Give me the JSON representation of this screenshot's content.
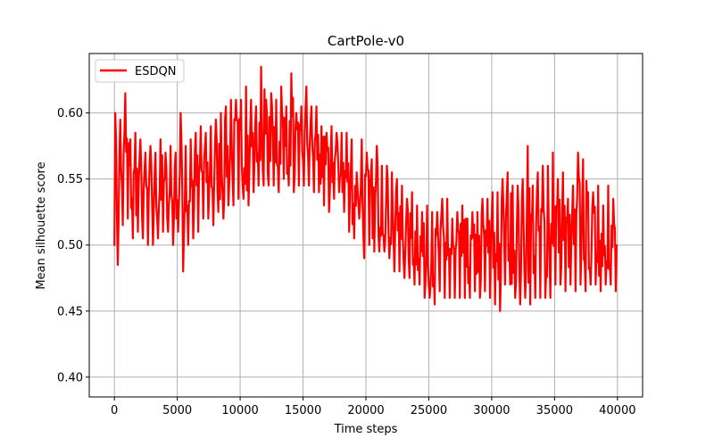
{
  "chart_data": {
    "type": "line",
    "title": "CartPole-v0",
    "xlabel": "Time steps",
    "ylabel": "Mean silhouette score",
    "xlim": [
      -2000,
      42000
    ],
    "ylim": [
      0.385,
      0.645
    ],
    "x_ticks": [
      0,
      5000,
      10000,
      15000,
      20000,
      25000,
      30000,
      35000,
      40000
    ],
    "y_ticks": [
      0.4,
      0.45,
      0.5,
      0.55,
      0.6
    ],
    "x_tick_labels": [
      "0",
      "5000",
      "10000",
      "15000",
      "20000",
      "25000",
      "30000",
      "35000",
      "40000"
    ],
    "y_tick_labels": [
      "0.40",
      "0.45",
      "0.50",
      "0.55",
      "0.60"
    ],
    "grid": true,
    "legend_position": "top-left",
    "series": [
      {
        "name": "ESDQN",
        "color": "#ff0000",
        "x_start": 0,
        "x_step": 400,
        "lows": [
          0.485,
          0.515,
          0.52,
          0.505,
          0.51,
          0.505,
          0.5,
          0.5,
          0.505,
          0.51,
          0.51,
          0.5,
          0.51,
          0.48,
          0.5,
          0.505,
          0.51,
          0.52,
          0.52,
          0.515,
          0.525,
          0.52,
          0.53,
          0.53,
          0.535,
          0.535,
          0.53,
          0.54,
          0.545,
          0.545,
          0.545,
          0.545,
          0.54,
          0.55,
          0.545,
          0.54,
          0.545,
          0.545,
          0.545,
          0.54,
          0.54,
          0.53,
          0.525,
          0.535,
          0.54,
          0.525,
          0.51,
          0.505,
          0.52,
          0.49,
          0.5,
          0.495,
          0.495,
          0.495,
          0.49,
          0.48,
          0.48,
          0.475,
          0.475,
          0.47,
          0.47,
          0.46,
          0.46,
          0.455,
          0.465,
          0.46,
          0.46,
          0.46,
          0.46,
          0.46,
          0.46,
          0.465,
          0.46,
          0.465,
          0.46,
          0.455,
          0.45,
          0.47,
          0.47,
          0.46,
          0.455,
          0.46,
          0.455,
          0.46,
          0.46,
          0.46,
          0.46,
          0.47,
          0.47,
          0.465,
          0.47,
          0.465,
          0.47,
          0.465,
          0.47,
          0.47,
          0.465,
          0.47,
          0.47,
          0.465
        ],
        "highs": [
          0.6,
          0.595,
          0.615,
          0.58,
          0.585,
          0.58,
          0.57,
          0.575,
          0.57,
          0.58,
          0.57,
          0.575,
          0.57,
          0.6,
          0.575,
          0.58,
          0.585,
          0.59,
          0.585,
          0.59,
          0.595,
          0.6,
          0.605,
          0.61,
          0.61,
          0.61,
          0.62,
          0.61,
          0.605,
          0.635,
          0.61,
          0.615,
          0.61,
          0.62,
          0.605,
          0.63,
          0.6,
          0.605,
          0.62,
          0.605,
          0.605,
          0.59,
          0.585,
          0.59,
          0.585,
          0.585,
          0.585,
          0.58,
          0.555,
          0.58,
          0.57,
          0.565,
          0.575,
          0.56,
          0.56,
          0.555,
          0.55,
          0.545,
          0.535,
          0.54,
          0.53,
          0.525,
          0.53,
          0.525,
          0.525,
          0.535,
          0.535,
          0.52,
          0.525,
          0.53,
          0.52,
          0.525,
          0.525,
          0.535,
          0.535,
          0.54,
          0.54,
          0.55,
          0.555,
          0.545,
          0.545,
          0.55,
          0.575,
          0.545,
          0.555,
          0.56,
          0.56,
          0.57,
          0.55,
          0.555,
          0.535,
          0.545,
          0.57,
          0.565,
          0.54,
          0.54,
          0.545,
          0.53,
          0.545,
          0.535
        ]
      }
    ]
  }
}
